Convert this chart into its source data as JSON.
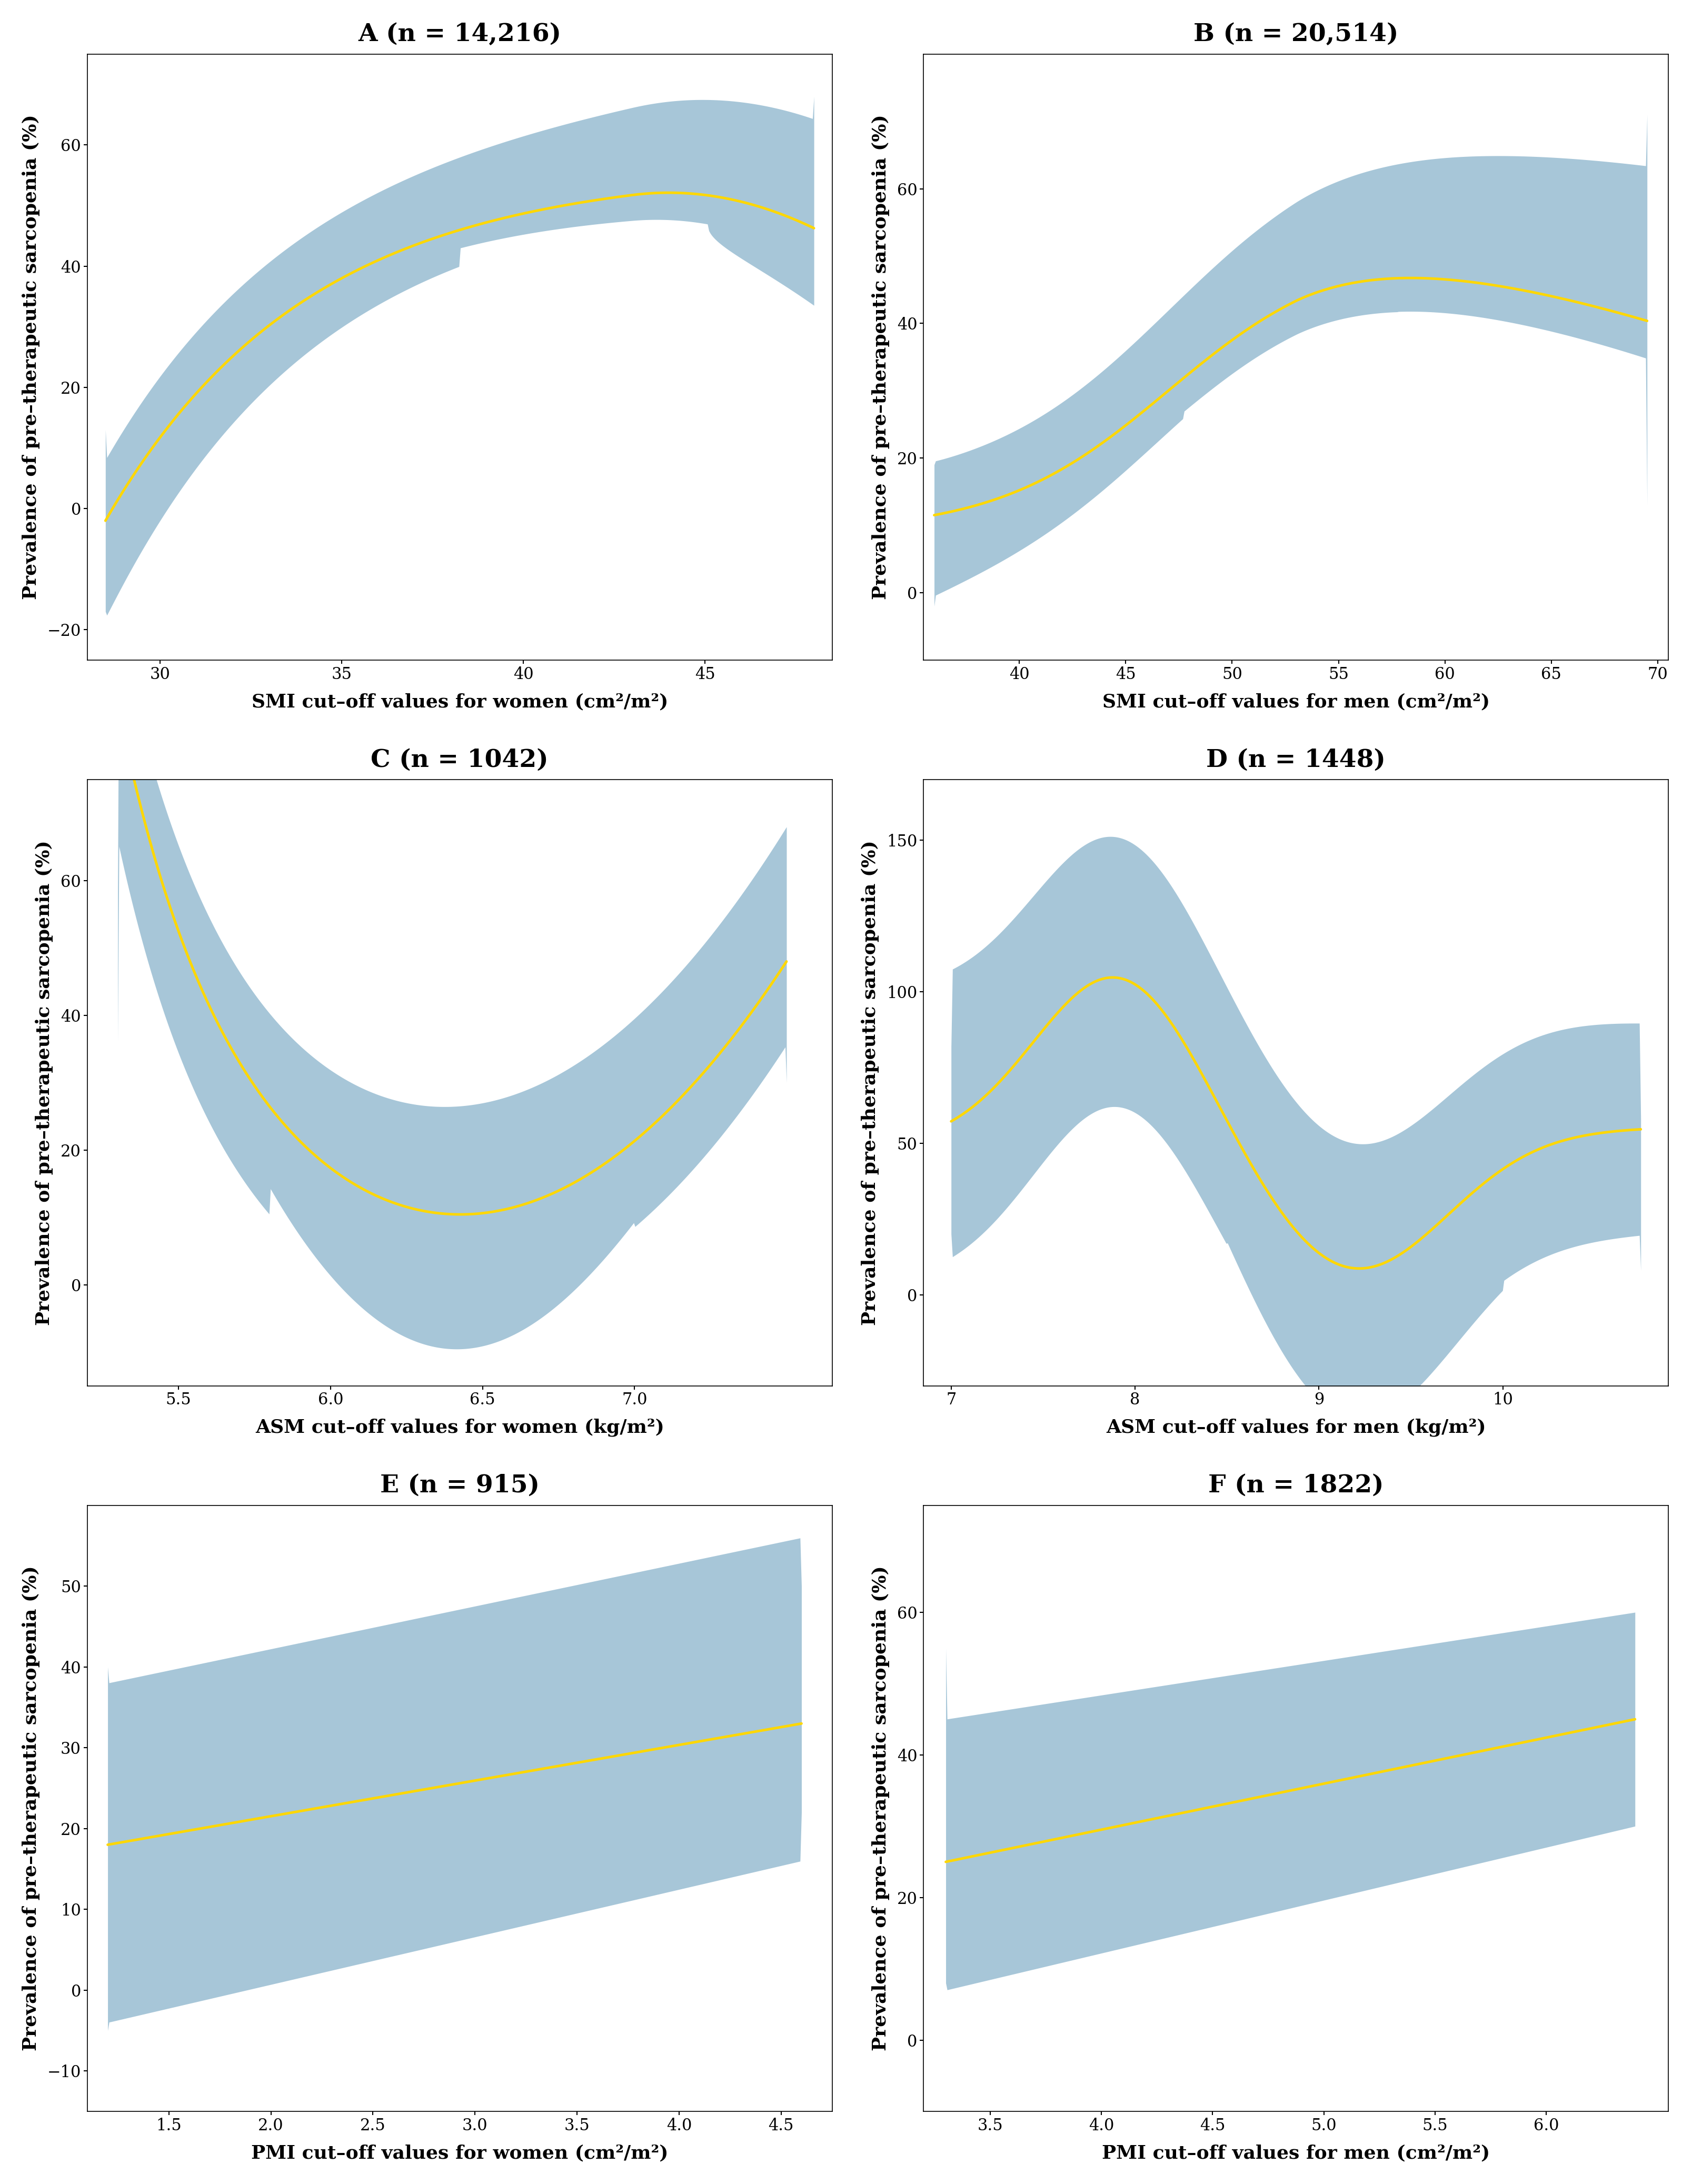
{
  "panels": [
    {
      "title": "A (n = 14,216)",
      "xlabel": "SMI cut–off values for women (cm²/m²)",
      "ylabel": "Prevalence of pre–therapeutic sarcopenia (%)",
      "x_start": 28.5,
      "x_end": 48.0,
      "xlim": [
        28.0,
        48.5
      ],
      "ylim": [
        -25,
        75
      ],
      "yticks": [
        -20,
        0,
        20,
        40,
        60
      ],
      "xticks": [
        30,
        35,
        40,
        45
      ],
      "curve_type": "A"
    },
    {
      "title": "B (n = 20,514)",
      "xlabel": "SMI cut–off values for men (cm²/m²)",
      "ylabel": "Prevalence of pre–therapeutic sarcopenia (%)",
      "x_start": 36.0,
      "x_end": 69.5,
      "xlim": [
        35.5,
        70.5
      ],
      "ylim": [
        -10,
        80
      ],
      "yticks": [
        0,
        20,
        40,
        60
      ],
      "xticks": [
        40,
        45,
        50,
        55,
        60,
        65,
        70
      ],
      "curve_type": "B"
    },
    {
      "title": "C (n = 1042)",
      "xlabel": "ASM cut–off values for women (kg/m²)",
      "ylabel": "Prevalence of pre–therapeutic sarcopenia (%)",
      "x_start": 5.3,
      "x_end": 7.5,
      "xlim": [
        5.2,
        7.65
      ],
      "ylim": [
        -15,
        75
      ],
      "yticks": [
        0,
        20,
        40,
        60
      ],
      "xticks": [
        5.5,
        6.0,
        6.5,
        7.0
      ],
      "curve_type": "C"
    },
    {
      "title": "D (n = 1448)",
      "xlabel": "ASM cut–off values for men (kg/m²)",
      "ylabel": "Prevalence of pre–therapeutic sarcopenia (%)",
      "x_start": 7.0,
      "x_end": 10.75,
      "xlim": [
        6.85,
        10.9
      ],
      "ylim": [
        -30,
        170
      ],
      "yticks": [
        0,
        50,
        100,
        150
      ],
      "xticks": [
        7,
        8,
        9,
        10
      ],
      "curve_type": "D"
    },
    {
      "title": "E (n = 915)",
      "xlabel": "PMI cut–off values for women (cm²/m²)",
      "ylabel": "Prevalence of pre–therapeutic sarcopenia (%)",
      "x_start": 1.2,
      "x_end": 4.6,
      "xlim": [
        1.1,
        4.75
      ],
      "ylim": [
        -15,
        60
      ],
      "yticks": [
        -10,
        0,
        10,
        20,
        30,
        40,
        50
      ],
      "xticks": [
        1.5,
        2.0,
        2.5,
        3.0,
        3.5,
        4.0,
        4.5
      ],
      "curve_type": "E"
    },
    {
      "title": "F (n = 1822)",
      "xlabel": "PMI cut–off values for men (cm²/m²)",
      "ylabel": "Prevalence of pre–therapeutic sarcopenia (%)",
      "x_start": 3.3,
      "x_end": 6.4,
      "xlim": [
        3.2,
        6.55
      ],
      "ylim": [
        -10,
        75
      ],
      "yticks": [
        0,
        20,
        40,
        60
      ],
      "xticks": [
        3.5,
        4.0,
        4.5,
        5.0,
        5.5,
        6.0
      ],
      "curve_type": "F"
    }
  ],
  "fill_color": "#8ab4cc",
  "fill_alpha": 0.75,
  "line_color": "#FFD700",
  "line_width": 3.5,
  "bg_color": "#ffffff",
  "title_fontsize": 34,
  "label_fontsize": 26,
  "tick_fontsize": 22
}
